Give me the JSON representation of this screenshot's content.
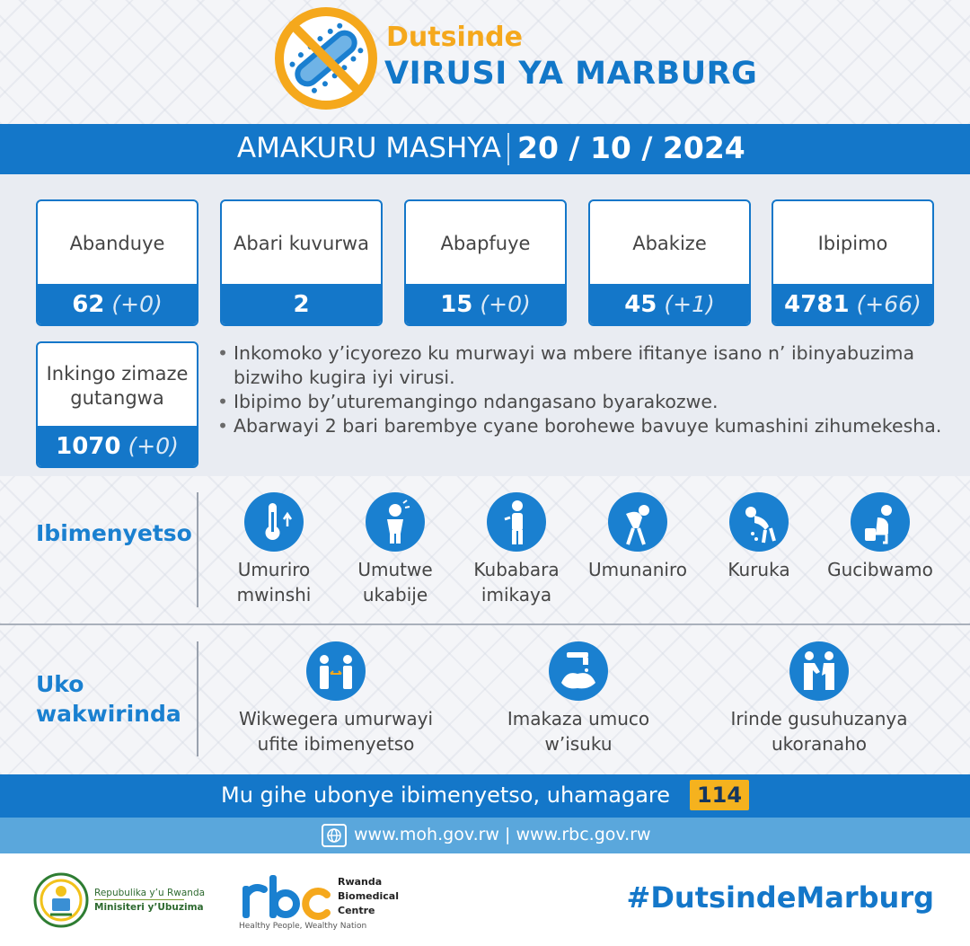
{
  "header": {
    "title_top": "Dutsinde",
    "title_main": "VIRUSI YA MARBURG"
  },
  "update": {
    "label": "AMAKURU MASHYA",
    "date": "20 / 10 / 2024"
  },
  "stats": [
    {
      "label": "Abanduye",
      "value": "62",
      "delta": "(+0)"
    },
    {
      "label": "Abari kuvurwa",
      "value": "2",
      "delta": ""
    },
    {
      "label": "Abapfuye",
      "value": "15",
      "delta": "(+0)"
    },
    {
      "label": "Abakize",
      "value": "45",
      "delta": "(+1)"
    },
    {
      "label": "Ibipimo",
      "value": "4781",
      "delta": "(+66)"
    }
  ],
  "vaccine": {
    "label": "Inkingo zimaze gutangwa",
    "value": "1070",
    "delta": "(+0)"
  },
  "bullets": [
    "Inkomoko y’icyorezo ku murwayi wa mbere ifitanye isano n’ ibinyabuzima bizwiho kugira iyi virusi.",
    "Ibipimo by’uturemangingo ndangasano byarakozwe.",
    "Abarwayi 2 bari barembye cyane borohewe bavuye kumashini zihumekesha."
  ],
  "symptoms": {
    "title": "Ibimenyetso",
    "items": [
      {
        "label_1": "Umuriro",
        "label_2": "mwinshi",
        "icon": "thermometer-icon"
      },
      {
        "label_1": "Umutwe",
        "label_2": "ukabije",
        "icon": "headache-icon"
      },
      {
        "label_1": "Kubabara",
        "label_2": "imikaya",
        "icon": "muscle-pain-icon"
      },
      {
        "label_1": "Umunaniro",
        "label_2": "",
        "icon": "fatigue-icon"
      },
      {
        "label_1": "Kuruka",
        "label_2": "",
        "icon": "vomiting-icon"
      },
      {
        "label_1": "Gucibwamo",
        "label_2": "",
        "icon": "diarrhea-icon"
      }
    ]
  },
  "prevention": {
    "title_1": "Uko",
    "title_2": "wakwirinda",
    "items": [
      {
        "label_1": "Wikwegera umurwayi",
        "label_2": "ufite ibimenyetso",
        "icon": "distance-icon"
      },
      {
        "label_1": "Imakaza umuco",
        "label_2": "w’isuku",
        "icon": "handwash-icon"
      },
      {
        "label_1": "Irinde gusuhuzanya",
        "label_2": "ukoranaho",
        "icon": "no-handshake-icon"
      }
    ]
  },
  "call": {
    "text": "Mu gihe ubonye ibimenyetso, uhamagare",
    "number": "114"
  },
  "web": {
    "links": "www.moh.gov.rw | www.rbc.gov.rw"
  },
  "footer": {
    "gov_name": "Repubulika y’u Rwanda",
    "ministry": "Minisiteri y’Ubuzima",
    "rbc_name_1": "Rwanda",
    "rbc_name_2": "Biomedical",
    "rbc_name_3": "Centre",
    "rbc_slogan": "Healthy People, Wealthy Nation",
    "hashtag": "#DutsindeMarburg"
  },
  "colors": {
    "primary_blue": "#1477c9",
    "accent_orange": "#f5a81c",
    "light_blue": "#5aa7dc"
  }
}
